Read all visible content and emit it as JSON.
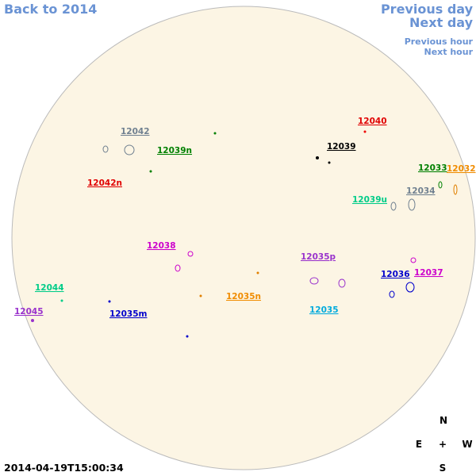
{
  "navigation": {
    "back": "Back to 2014",
    "previous_day": "Previous day",
    "next_day": "Next day",
    "previous_hour": "Previous hour",
    "next_hour": "Next hour"
  },
  "regions": [
    "12042",
    "12039n",
    "12040",
    "12039",
    "12042n",
    "12033",
    "12032",
    "12034",
    "12039u",
    "12038",
    "12035p",
    "12036",
    "12037",
    "12044",
    "12035n",
    "12045",
    "12035m",
    "12035"
  ],
  "compass": {
    "north": "N",
    "east": "E",
    "center": "+",
    "west": "W",
    "south": "S"
  },
  "timestamp": "2014-04-19T15:00:34"
}
